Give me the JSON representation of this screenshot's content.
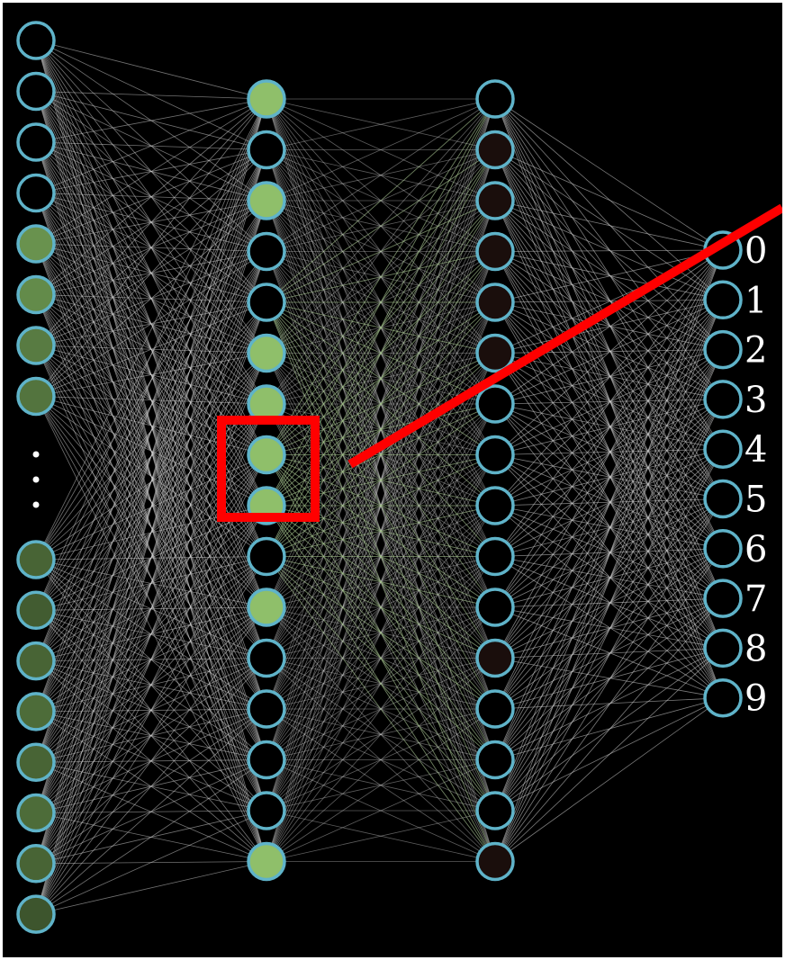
{
  "network": {
    "input_layer": {
      "activations_top": [
        0.0,
        0.0,
        0.0,
        0.0,
        0.75,
        0.7,
        0.6,
        0.55
      ],
      "ellipsis": "⋮",
      "activations_bottom": [
        0.45,
        0.4,
        0.45,
        0.5,
        0.45,
        0.5,
        0.45,
        0.35
      ]
    },
    "hidden_layer_1": {
      "activations": [
        1,
        0,
        1,
        0,
        0,
        1,
        1,
        1,
        1,
        0,
        1,
        0,
        0,
        0,
        0,
        1
      ]
    },
    "hidden_layer_2": {
      "activations": [
        0,
        0.05,
        0.05,
        0.05,
        0.05,
        0.05,
        0,
        0,
        0,
        0,
        0,
        0.05,
        0,
        0,
        0,
        0.05
      ]
    },
    "output_layer": {
      "labels": [
        "0",
        "1",
        "2",
        "3",
        "4",
        "5",
        "6",
        "7",
        "8",
        "9"
      ]
    }
  },
  "annotation": {
    "highlight_color": "#ff0000",
    "pointer_color": "#ff0000"
  },
  "colors": {
    "background": "#000000",
    "frame": "#ffffff",
    "neuron_stroke": "#5fb3c9",
    "active_fill": "#8fbf6a",
    "input_fill": "#3f6b36",
    "edge": "#cfcfcf",
    "green_edge": "#8fbf6a",
    "dark_fill": "#000000",
    "brown_fill": "#1a0e0c",
    "label": "#ffffff"
  }
}
